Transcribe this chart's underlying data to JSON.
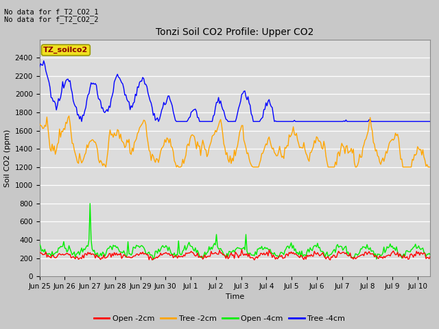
{
  "title": "Tonzi Soil CO2 Profile: Upper CO2",
  "ylabel": "Soil CO2 (ppm)",
  "xlabel": "Time",
  "top_text_1": "No data for f_T2_CO2_1",
  "top_text_2": "No data for f_T2_CO2_2",
  "legend_label_box": "TZ_soilco2",
  "ylim": [
    0,
    2600
  ],
  "yticks": [
    0,
    200,
    400,
    600,
    800,
    1000,
    1200,
    1400,
    1600,
    1800,
    2000,
    2200,
    2400
  ],
  "xlim": [
    0,
    15.5
  ],
  "series_colors": {
    "open_2cm": "#ff0000",
    "tree_2cm": "#ffa500",
    "open_4cm": "#00ee00",
    "tree_4cm": "#0000ff"
  },
  "series_labels": {
    "open_2cm": "Open -2cm",
    "tree_2cm": "Tree -2cm",
    "open_4cm": "Open -4cm",
    "tree_4cm": "Tree -4cm"
  },
  "fig_bg": "#c8c8c8",
  "plot_bg": "#dcdcdc",
  "grid_color": "#ffffff",
  "tick_labels": [
    "Jun 25",
    "Jun 26",
    "Jun 27",
    "Jun 28",
    "Jun 29",
    "Jun 30",
    "Jul 1",
    "Jul 2",
    "Jul 3",
    "Jul 4",
    "Jul 5",
    "Jul 6",
    "Jul 7",
    "Jul 8",
    "Jul 9",
    "Jul 10"
  ],
  "tick_positions": [
    0,
    1,
    2,
    3,
    4,
    5,
    6,
    7,
    8,
    9,
    10,
    11,
    12,
    13,
    14,
    15
  ]
}
